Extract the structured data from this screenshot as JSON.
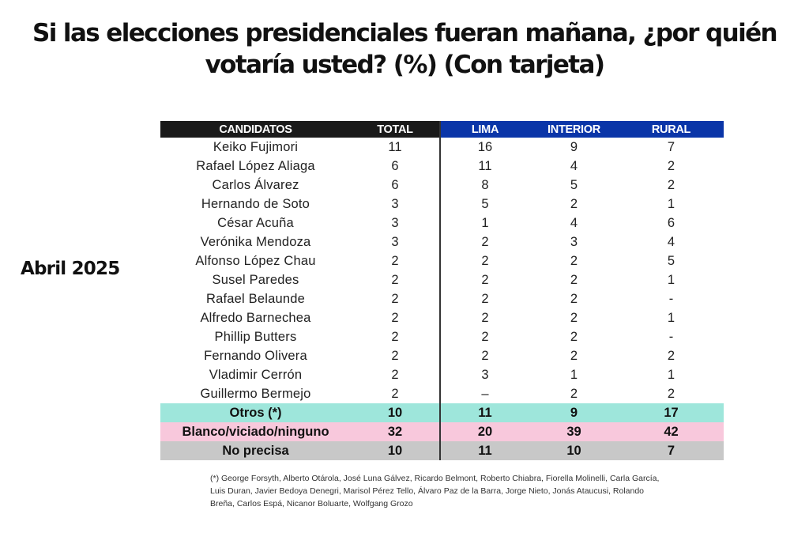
{
  "title": "Si las elecciones presidenciales fueran mañana, ¿por quién votaría usted? (%) (Con tarjeta)",
  "period_label": "Abril 2025",
  "colors": {
    "header_dark": "#1a1a1a",
    "header_blue": "#0a35a8",
    "otros_row": "#9ee6db",
    "blanco_row": "#f8c8dc",
    "no_precisa_row": "#c8c8c8"
  },
  "chart_data": {
    "type": "table",
    "columns": [
      "CANDIDATOS",
      "TOTAL",
      "LIMA",
      "INTERIOR",
      "RURAL"
    ],
    "rows": [
      [
        "Keiko Fujimori",
        "11",
        "16",
        "9",
        "7"
      ],
      [
        "Rafael López Aliaga",
        "6",
        "11",
        "4",
        "2"
      ],
      [
        "Carlos Álvarez",
        "6",
        "8",
        "5",
        "2"
      ],
      [
        "Hernando de Soto",
        "3",
        "5",
        "2",
        "1"
      ],
      [
        "César Acuña",
        "3",
        "1",
        "4",
        "6"
      ],
      [
        "Verónika Mendoza",
        "3",
        "2",
        "3",
        "4"
      ],
      [
        "Alfonso López Chau",
        "2",
        "2",
        "2",
        "5"
      ],
      [
        "Susel Paredes",
        "2",
        "2",
        "2",
        "1"
      ],
      [
        "Rafael Belaunde",
        "2",
        "2",
        "2",
        "-"
      ],
      [
        "Alfredo Barnechea",
        "2",
        "2",
        "2",
        "1"
      ],
      [
        "Phillip Butters",
        "2",
        "2",
        "2",
        "-"
      ],
      [
        "Fernando Olivera",
        "2",
        "2",
        "2",
        "2"
      ],
      [
        "Vladimir Cerrón",
        "2",
        "3",
        "1",
        "1"
      ],
      [
        "Guillermo Bermejo",
        "2",
        "–",
        "2",
        "2"
      ]
    ],
    "summary_rows": [
      {
        "label": "Otros (*)",
        "values": [
          "10",
          "11",
          "9",
          "17"
        ],
        "style": "otros"
      },
      {
        "label": "Blanco/viciado/ninguno",
        "values": [
          "32",
          "20",
          "39",
          "42"
        ],
        "style": "blanco"
      },
      {
        "label": "No precisa",
        "values": [
          "10",
          "11",
          "10",
          "7"
        ],
        "style": "nop"
      }
    ]
  },
  "footnote_lines": [
    "(*) George Forsyth, Alberto Otárola, José Luna Gálvez, Ricardo Belmont, Roberto Chiabra, Fiorella Molinelli, Carla García,",
    "Luis Duran, Javier Bedoya Denegri, Marisol Pérez Tello, Álvaro Paz de la Barra, Jorge Nieto, Jonás Ataucusi, Rolando",
    "Breña, Carlos Espá, Nicanor Boluarte, Wolfgang Grozo"
  ]
}
